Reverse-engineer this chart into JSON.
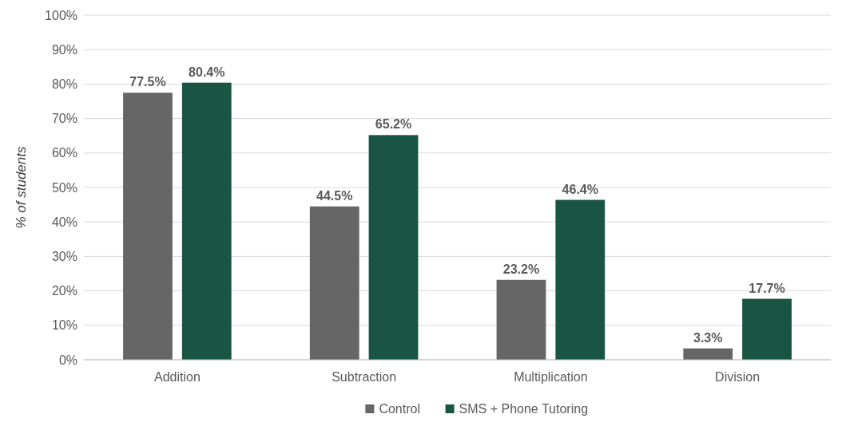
{
  "chart_data": {
    "type": "bar",
    "ylabel": "% of students",
    "categories": [
      "Addition",
      "Subtraction",
      "Multiplication",
      "Division"
    ],
    "series": [
      {
        "name": "Control",
        "color": "#666666",
        "values": [
          77.5,
          44.5,
          23.2,
          3.3
        ],
        "value_labels": [
          "77.5%",
          "44.5%",
          "23.2%",
          "3.3%"
        ]
      },
      {
        "name": "SMS + Phone Tutoring",
        "color": "#1a5442",
        "values": [
          80.4,
          65.2,
          46.4,
          17.7
        ],
        "value_labels": [
          "80.4%",
          "65.2%",
          "46.4%",
          "17.7%"
        ]
      }
    ],
    "ylim": [
      0,
      100
    ],
    "yticks": [
      {
        "value": 0,
        "label": "0%"
      },
      {
        "value": 10,
        "label": "10%"
      },
      {
        "value": 20,
        "label": "20%"
      },
      {
        "value": 30,
        "label": "30%"
      },
      {
        "value": 40,
        "label": "40%"
      },
      {
        "value": 50,
        "label": "50%"
      },
      {
        "value": 60,
        "label": "60%"
      },
      {
        "value": 70,
        "label": "70%"
      },
      {
        "value": 80,
        "label": "80%"
      },
      {
        "value": 90,
        "label": "90%"
      },
      {
        "value": 100,
        "label": "100%"
      }
    ],
    "grid": "y",
    "legend": "bottom"
  }
}
